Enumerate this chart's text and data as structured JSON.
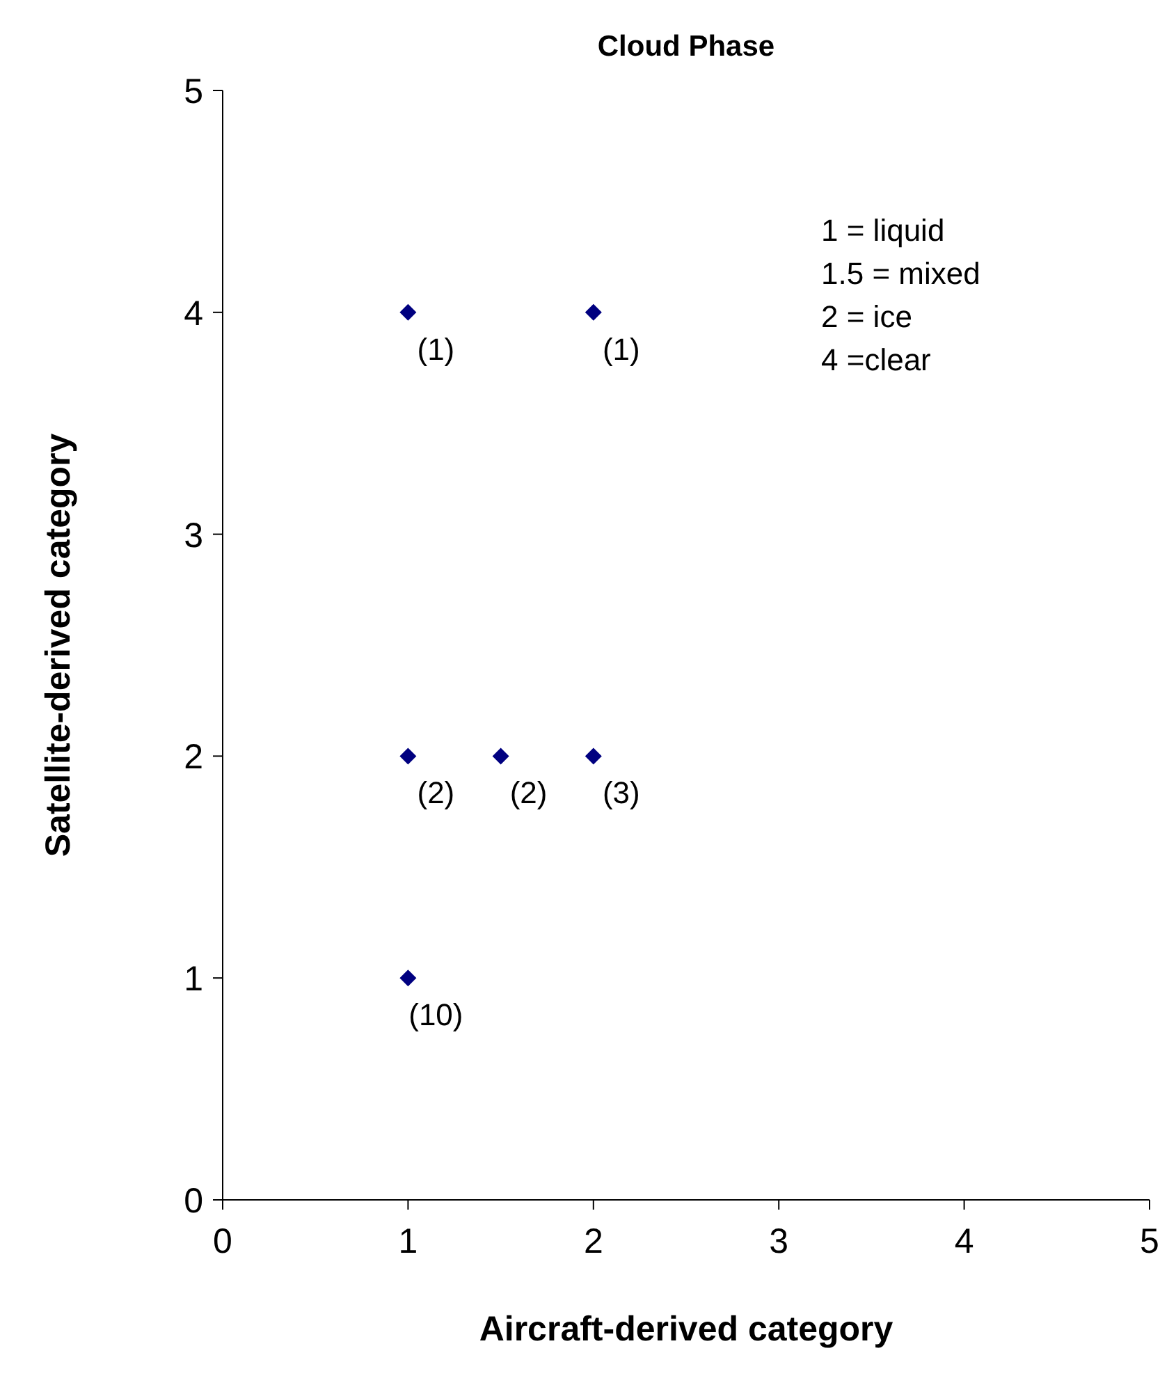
{
  "chart_data": {
    "type": "scatter",
    "title": "Cloud Phase",
    "xlabel": "Aircraft-derived category",
    "ylabel": "Satellite-derived category",
    "x": [
      1,
      2,
      1,
      1.5,
      2,
      1
    ],
    "values": [
      4,
      4,
      2,
      2,
      2,
      1
    ],
    "color": "#000080",
    "marker": "diamond",
    "xlim": [
      0,
      5
    ],
    "xticks": [
      0,
      1,
      2,
      3,
      4,
      5
    ],
    "ylim": [
      0,
      5
    ],
    "yticks": [
      0,
      1,
      2,
      3,
      4,
      5
    ],
    "grid": false,
    "annotations": [
      {
        "text": "(1)",
        "x": 1,
        "y": 4
      },
      {
        "text": "(1)",
        "x": 2,
        "y": 4
      },
      {
        "text": "(2)",
        "x": 1,
        "y": 2
      },
      {
        "text": "(2)",
        "x": 1.5,
        "y": 2
      },
      {
        "text": "(3)",
        "x": 2,
        "y": 2
      },
      {
        "text": "(10)",
        "x": 1,
        "y": 1
      },
      "1 = liquid",
      "1.5 = mixed",
      "2 = ice",
      "4 =clear"
    ]
  }
}
